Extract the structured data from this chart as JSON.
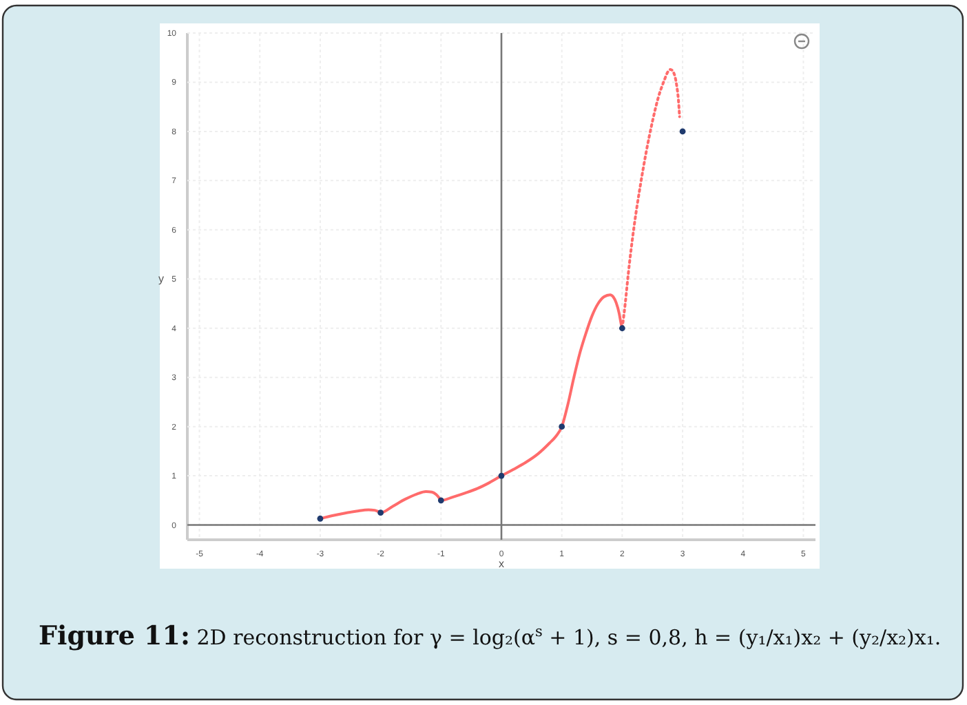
{
  "chart_data": {
    "type": "line",
    "xlabel": "x",
    "ylabel": "y",
    "xlim": [
      -5.2,
      5.2
    ],
    "ylim": [
      -0.3,
      10
    ],
    "xticks": [
      -5,
      -4,
      -3,
      -2,
      -1,
      0,
      1,
      2,
      3,
      4,
      5
    ],
    "yticks": [
      0,
      1,
      2,
      3,
      4,
      5,
      6,
      7,
      8,
      9,
      10
    ],
    "grid": true,
    "series": [
      {
        "color": "#ff6b6b",
        "line_style": "solid",
        "marker": "none",
        "x": [
          -3,
          -2.8,
          -2.6,
          -2.4,
          -2.2,
          -2.1,
          -2.05,
          -2,
          -1.8,
          -1.6,
          -1.4,
          -1.25,
          -1.15,
          -1.08,
          -1.03,
          -1,
          -0.8,
          -0.6,
          -0.4,
          -0.2,
          0,
          0.2,
          0.4,
          0.6,
          0.8,
          0.9,
          1,
          1.1,
          1.2,
          1.3,
          1.4,
          1.5,
          1.6,
          1.7,
          1.8,
          1.85,
          1.9,
          1.95,
          1.98,
          2
        ],
        "values": [
          0.13,
          0.19,
          0.24,
          0.28,
          0.31,
          0.3,
          0.28,
          0.25,
          0.38,
          0.52,
          0.63,
          0.68,
          0.67,
          0.62,
          0.55,
          0.5,
          0.57,
          0.65,
          0.74,
          0.86,
          1,
          1.13,
          1.27,
          1.44,
          1.67,
          1.8,
          2,
          2.45,
          3,
          3.5,
          3.9,
          4.25,
          4.5,
          4.64,
          4.68,
          4.64,
          4.52,
          4.3,
          4.1,
          4
        ]
      },
      {
        "color": "#ff6b6b",
        "line_style": "dotted",
        "marker": "none",
        "x": [
          2,
          2.05,
          2.1,
          2.2,
          2.3,
          2.4,
          2.5,
          2.6,
          2.7,
          2.75,
          2.8,
          2.85,
          2.9,
          2.93,
          2.95
        ],
        "values": [
          4,
          4.5,
          5.1,
          6.1,
          6.9,
          7.6,
          8.2,
          8.7,
          9.05,
          9.2,
          9.26,
          9.2,
          8.95,
          8.65,
          8.3
        ]
      },
      {
        "type": "scatter",
        "color": "#1f3a6e",
        "marker": "circle",
        "x": [
          -3,
          -2,
          -1,
          0,
          1,
          2,
          3
        ],
        "values": [
          0.13,
          0.25,
          0.5,
          1,
          2,
          4,
          8
        ]
      }
    ],
    "annotations": [
      "Figure 11: 2D reconstruction for γ = log₂(α$^{s}$ + 1), s = 0,8, h = (y₁/x₁)x₂ + (y₂/x₂)x₁."
    ]
  }
}
